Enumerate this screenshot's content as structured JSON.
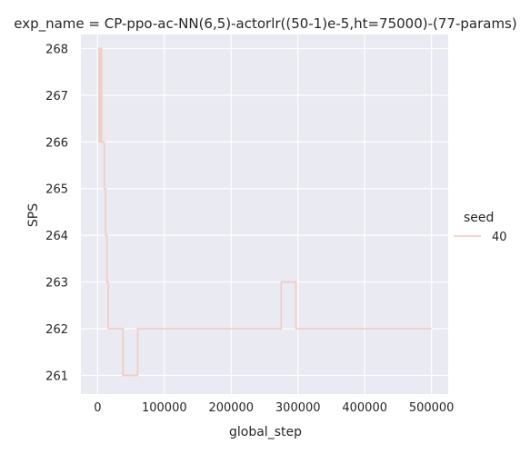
{
  "chart_data": {
    "type": "line",
    "title": "exp_name = CP-ppo-ac-NN(6,5)-actorlr((50-1)e-5,ht=75000)-(77-params)",
    "xlabel": "global_step",
    "ylabel": "SPS",
    "xlim": [
      -25000,
      525000
    ],
    "ylim": [
      260.6,
      268.3
    ],
    "xticks": [
      0,
      100000,
      200000,
      300000,
      400000,
      500000
    ],
    "yticks": [
      261,
      262,
      263,
      264,
      265,
      266,
      267,
      268
    ],
    "grid": true,
    "background_color": "#eaeaf2",
    "grid_color": "#ffffff",
    "legend": {
      "title": "seed",
      "placement": "right"
    },
    "series": [
      {
        "name": "40",
        "color": "#f0cfc4",
        "step": true,
        "x": [
          0,
          2000,
          4000,
          6000,
          8000,
          10000,
          12000,
          14000,
          16000,
          20000,
          28000,
          38000,
          48000,
          60000,
          80000,
          150000,
          230000,
          275000,
          285000,
          297000,
          320000,
          400000,
          500000
        ],
        "y": [
          268,
          266,
          268,
          266,
          266,
          265,
          264,
          263,
          262,
          262,
          262,
          261,
          261,
          262,
          262,
          262,
          262,
          263,
          263,
          262,
          262,
          262,
          262
        ]
      }
    ]
  }
}
